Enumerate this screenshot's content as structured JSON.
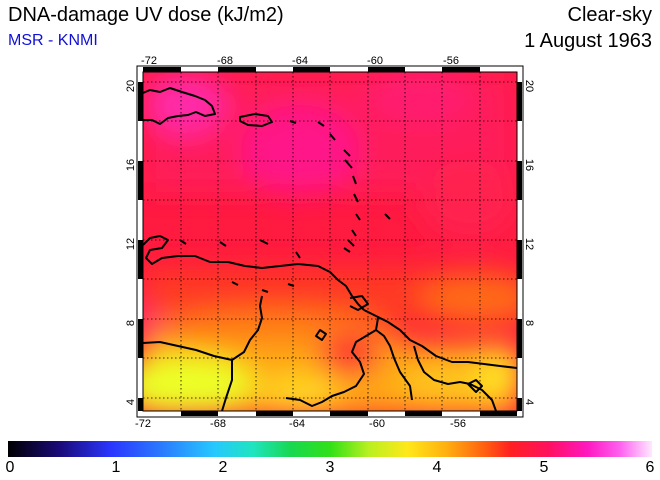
{
  "header": {
    "title": "DNA-damage UV dose (kJ/m2)",
    "credit": "MSR - KNMI",
    "mode": "Clear-sky",
    "date": "1 August 1963"
  },
  "map": {
    "region": "Caribbean",
    "lon_range": [
      -73,
      -53
    ],
    "lat_range": [
      3.4,
      20.6
    ],
    "lon_ticks": [
      "-72",
      "-68",
      "-64",
      "-60",
      "-56"
    ],
    "lat_ticks": [
      "4",
      "8",
      "12",
      "16",
      "20"
    ],
    "gridlines": "dotted",
    "coastlines": true
  },
  "colorbar": {
    "labels": [
      "0",
      "1",
      "2",
      "3",
      "4",
      "5",
      "6"
    ],
    "range": [
      0,
      6
    ],
    "colors": [
      "#000000",
      "#2a36ff",
      "#26c8ff",
      "#30e018",
      "#ffe81a",
      "#ff2020",
      "#ff18c0",
      "#ffe8ff"
    ]
  }
}
